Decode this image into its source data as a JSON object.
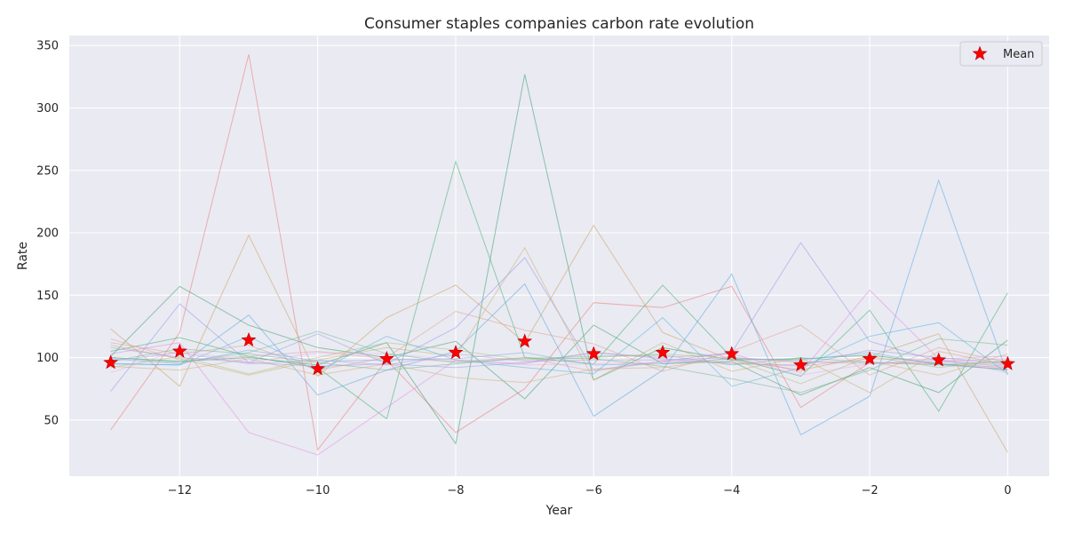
{
  "chart_data": {
    "type": "line",
    "title": "Consumer staples companies carbon rate evolution",
    "xlabel": "Year",
    "ylabel": "Rate",
    "xlim": [
      -13.6,
      0.6
    ],
    "ylim": [
      5,
      358
    ],
    "xticks": [
      -12,
      -10,
      -8,
      -6,
      -4,
      -2,
      0
    ],
    "yticks": [
      50,
      100,
      150,
      200,
      250,
      300,
      350
    ],
    "grid": true,
    "legend": {
      "position": "top-right",
      "entries": [
        "Mean"
      ]
    },
    "x": [
      -13,
      -12,
      -11,
      -10,
      -9,
      -8,
      -7,
      -6,
      -5,
      -4,
      -3,
      -2,
      -1,
      0
    ],
    "mean": {
      "name": "Mean",
      "color": "#ff0000",
      "marker": "star",
      "values": [
        96,
        105,
        114,
        91,
        99,
        104,
        113,
        103,
        104,
        103,
        94,
        99,
        98,
        95
      ]
    },
    "series": [
      {
        "color": "#ea7a74",
        "values": [
          42,
          120,
          343,
          26,
          98,
          40,
          75,
          144,
          140,
          157,
          60,
          96,
          95,
          92
        ]
      },
      {
        "color": "#40b070",
        "values": [
          105,
          116,
          101,
          92,
          51,
          257,
          100,
          95,
          158,
          100,
          85,
          138,
          57,
          152
        ]
      },
      {
        "color": "#30a070",
        "values": [
          100,
          97,
          100,
          94,
          112,
          31,
          327,
          82,
          108,
          98,
          99,
          102,
          95,
          90
        ]
      },
      {
        "color": "#c8a060",
        "values": [
          123,
          77,
          198,
          85,
          132,
          158,
          112,
          206,
          120,
          98,
          90,
          101,
          119,
          24
        ]
      },
      {
        "color": "#e090e0",
        "values": [
          103,
          112,
          40,
          22,
          60,
          98,
          95,
          104,
          100,
          103,
          88,
          154,
          99,
          101
        ]
      },
      {
        "color": "#58a8e0",
        "values": [
          95,
          94,
          134,
          70,
          90,
          105,
          159,
          53,
          90,
          167,
          38,
          69,
          242,
          86
        ]
      },
      {
        "color": "#9898ec",
        "values": [
          73,
          143,
          96,
          93,
          95,
          124,
          180,
          90,
          97,
          104,
          192,
          113,
          97,
          93
        ]
      },
      {
        "color": "#40a070",
        "values": [
          101,
          157,
          126,
          108,
          100,
          113,
          67,
          126,
          95,
          97,
          70,
          92,
          72,
          114
        ]
      },
      {
        "color": "#c8b070",
        "values": [
          110,
          99,
          86,
          98,
          108,
          101,
          188,
          82,
          112,
          89,
          100,
          72,
          105,
          94
        ]
      },
      {
        "color": "#58b8e0",
        "values": [
          95,
          94,
          117,
          89,
          117,
          98,
          92,
          87,
          132,
          77,
          92,
          117,
          128,
          87
        ]
      },
      {
        "color": "#e0a090",
        "values": [
          112,
          103,
          110,
          90,
          100,
          137,
          122,
          111,
          89,
          105,
          126,
          86,
          108,
          96
        ]
      },
      {
        "color": "#e8b0e0",
        "values": [
          88,
          106,
          96,
          104,
          103,
          98,
          94,
          95,
          96,
          101,
          86,
          95,
          99,
          88
        ]
      },
      {
        "color": "#7ab890",
        "values": [
          97,
          107,
          103,
          96,
          90,
          95,
          100,
          99,
          93,
          83,
          72,
          90,
          115,
          110
        ]
      },
      {
        "color": "#d0b078",
        "values": [
          93,
          90,
          99,
          86,
          95,
          84,
          80,
          91,
          92,
          100,
          96,
          97,
          86,
          103
        ]
      },
      {
        "color": "#a0a0e0",
        "values": [
          108,
          100,
          96,
          119,
          95,
          92,
          96,
          104,
          99,
          95,
          94,
          106,
          100,
          95
        ]
      },
      {
        "color": "#70c0a0",
        "values": [
          100,
          96,
          104,
          121,
          103,
          96,
          99,
          101,
          102,
          94,
          100,
          96,
          94,
          97
        ]
      },
      {
        "color": "#e0a0b0",
        "values": [
          115,
          98,
          101,
          105,
          99,
          97,
          100,
          89,
          97,
          96,
          93,
          99,
          98,
          94
        ]
      },
      {
        "color": "#b0c080",
        "values": [
          92,
          101,
          87,
          100,
          112,
          106,
          98,
          100,
          103,
          99,
          79,
          101,
          92,
          98
        ]
      },
      {
        "color": "#80b0e0",
        "values": [
          99,
          95,
          106,
          97,
          98,
          99,
          104,
          94,
          95,
          99,
          98,
          104,
          94,
          91
        ]
      },
      {
        "color": "#c0a0e0",
        "values": [
          97,
          104,
          95,
          98,
          94,
          103,
          97,
          98,
          98,
          100,
          97,
          95,
          97,
          99
        ]
      }
    ]
  }
}
